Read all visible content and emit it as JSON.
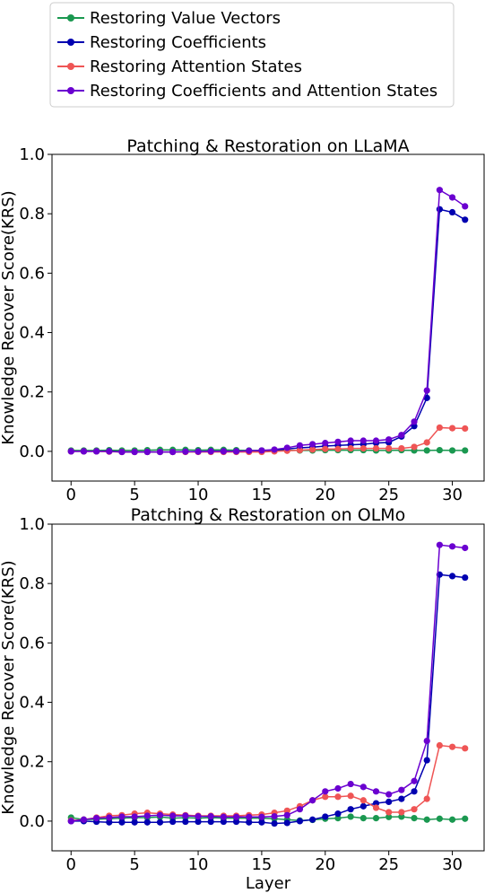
{
  "legend": {
    "placement": "top-center",
    "entries": [
      {
        "label": "Restoring Value Vectors",
        "color": "#1a9850"
      },
      {
        "label": "Restoring Coefficients",
        "color": "#0000b0"
      },
      {
        "label": "Restoring Attention States",
        "color": "#ef5555"
      },
      {
        "label": "Restoring Coefficients and Attention States",
        "color": "#6a00d0"
      }
    ]
  },
  "chart_data": [
    {
      "type": "line",
      "title": "Patching & Restoration on LLaMA",
      "xlabel": "",
      "ylabel": "Knowledge Recover Score(KRS)",
      "xlim": [
        -1.5,
        32.5
      ],
      "ylim": [
        -0.1,
        1.0
      ],
      "xticks": [
        0,
        5,
        10,
        15,
        20,
        25,
        30
      ],
      "xtick_labels": [
        "0",
        "5",
        "10",
        "15",
        "20",
        "25",
        "30"
      ],
      "yticks": [
        0.0,
        0.2,
        0.4,
        0.6,
        0.8,
        1.0
      ],
      "ytick_labels": [
        "0.0",
        "0.2",
        "0.4",
        "0.6",
        "0.8",
        "1.0"
      ],
      "grid": false,
      "x": [
        0,
        1,
        2,
        3,
        4,
        5,
        6,
        7,
        8,
        9,
        10,
        11,
        12,
        13,
        14,
        15,
        16,
        17,
        18,
        19,
        20,
        21,
        22,
        23,
        24,
        25,
        26,
        27,
        28,
        29,
        30,
        31
      ],
      "series": [
        {
          "name": "Restoring Value Vectors",
          "color": "#1a9850",
          "values": [
            0.003,
            0.003,
            0.003,
            0.004,
            0.003,
            0.003,
            0.004,
            0.005,
            0.005,
            0.005,
            0.004,
            0.005,
            0.005,
            0.004,
            0.003,
            0.003,
            0.004,
            0.004,
            0.003,
            0.003,
            0.004,
            0.004,
            0.004,
            0.004,
            0.003,
            0.003,
            0.004,
            0.003,
            0.003,
            0.004,
            0.003,
            0.003
          ]
        },
        {
          "name": "Restoring Coefficients",
          "color": "#0000b0",
          "values": [
            0.0,
            0.0,
            0.0,
            0.0,
            -0.002,
            -0.002,
            -0.002,
            -0.002,
            -0.002,
            -0.001,
            -0.001,
            0.0,
            0.0,
            0.0,
            0.0,
            0.002,
            0.004,
            0.008,
            0.012,
            0.014,
            0.018,
            0.02,
            0.022,
            0.024,
            0.028,
            0.03,
            0.05,
            0.085,
            0.18,
            0.815,
            0.805,
            0.78
          ]
        },
        {
          "name": "Restoring Attention States",
          "color": "#ef5555",
          "values": [
            0.0,
            0.0,
            0.0,
            -0.001,
            -0.002,
            -0.002,
            -0.002,
            -0.002,
            -0.002,
            -0.002,
            -0.002,
            -0.002,
            -0.002,
            -0.002,
            -0.002,
            -0.002,
            0.0,
            0.002,
            0.004,
            0.006,
            0.008,
            0.008,
            0.01,
            0.01,
            0.01,
            0.01,
            0.01,
            0.015,
            0.03,
            0.08,
            0.078,
            0.077
          ]
        },
        {
          "name": "Restoring Coefficients and Attention States",
          "color": "#6a00d0",
          "values": [
            0.0,
            0.0,
            0.0,
            0.0,
            -0.002,
            -0.002,
            -0.002,
            -0.002,
            -0.002,
            -0.001,
            -0.001,
            0.0,
            0.0,
            0.0,
            0.002,
            0.003,
            0.006,
            0.012,
            0.02,
            0.024,
            0.028,
            0.032,
            0.036,
            0.036,
            0.036,
            0.04,
            0.055,
            0.1,
            0.205,
            0.88,
            0.855,
            0.825
          ]
        }
      ]
    },
    {
      "type": "line",
      "title": "Patching & Restoration on OLMo",
      "xlabel": "Layer",
      "ylabel": "Knowledge Recover Score(KRS)",
      "xlim": [
        -1.5,
        32.5
      ],
      "ylim": [
        -0.1,
        1.0
      ],
      "xticks": [
        0,
        5,
        10,
        15,
        20,
        25,
        30
      ],
      "xtick_labels": [
        "0",
        "5",
        "10",
        "15",
        "20",
        "25",
        "30"
      ],
      "yticks": [
        0.0,
        0.2,
        0.4,
        0.6,
        0.8,
        1.0
      ],
      "ytick_labels": [
        "0.0",
        "0.2",
        "0.4",
        "0.6",
        "0.8",
        "1.0"
      ],
      "grid": false,
      "x": [
        0,
        1,
        2,
        3,
        4,
        5,
        6,
        7,
        8,
        9,
        10,
        11,
        12,
        13,
        14,
        15,
        16,
        17,
        18,
        19,
        20,
        21,
        22,
        23,
        24,
        25,
        26,
        27,
        28,
        29,
        30,
        31
      ],
      "series": [
        {
          "name": "Restoring Value Vectors",
          "color": "#1a9850",
          "values": [
            0.012,
            0.005,
            0.006,
            0.008,
            0.01,
            0.012,
            0.012,
            0.014,
            0.01,
            0.012,
            0.01,
            0.012,
            0.01,
            0.01,
            0.01,
            0.01,
            0.008,
            0.005,
            0.002,
            0.004,
            0.008,
            0.01,
            0.015,
            0.01,
            0.01,
            0.014,
            0.015,
            0.01,
            0.005,
            0.008,
            0.005,
            0.008
          ]
        },
        {
          "name": "Restoring Coefficients",
          "color": "#0000b0",
          "values": [
            0.0,
            0.0,
            -0.002,
            -0.004,
            -0.004,
            -0.004,
            -0.004,
            -0.004,
            -0.002,
            -0.002,
            -0.002,
            -0.002,
            -0.002,
            -0.002,
            -0.004,
            -0.004,
            -0.008,
            -0.006,
            0.0,
            0.005,
            0.015,
            0.025,
            0.04,
            0.05,
            0.06,
            0.065,
            0.075,
            0.1,
            0.205,
            0.83,
            0.825,
            0.82
          ]
        },
        {
          "name": "Restoring Attention States",
          "color": "#ef5555",
          "values": [
            0.002,
            0.005,
            0.012,
            0.018,
            0.02,
            0.025,
            0.028,
            0.025,
            0.022,
            0.02,
            0.018,
            0.018,
            0.018,
            0.018,
            0.02,
            0.022,
            0.028,
            0.035,
            0.05,
            0.07,
            0.082,
            0.082,
            0.085,
            0.07,
            0.045,
            0.03,
            0.03,
            0.04,
            0.075,
            0.255,
            0.25,
            0.245
          ]
        },
        {
          "name": "Restoring Coefficients and Attention States",
          "color": "#6a00d0",
          "values": [
            0.0,
            0.005,
            0.01,
            0.012,
            0.015,
            0.015,
            0.018,
            0.02,
            0.018,
            0.018,
            0.016,
            0.016,
            0.014,
            0.014,
            0.014,
            0.014,
            0.016,
            0.02,
            0.04,
            0.07,
            0.1,
            0.11,
            0.125,
            0.115,
            0.1,
            0.09,
            0.105,
            0.135,
            0.27,
            0.93,
            0.925,
            0.92
          ]
        }
      ]
    }
  ]
}
